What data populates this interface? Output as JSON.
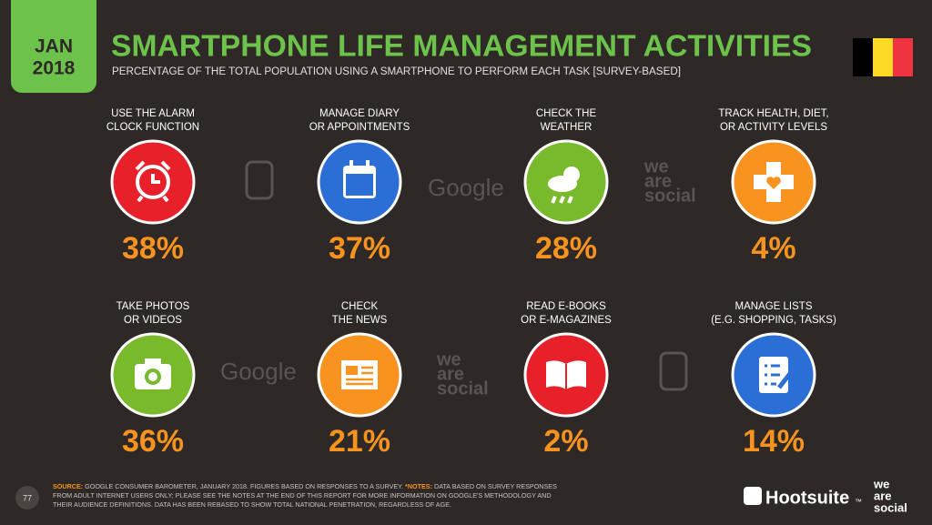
{
  "header": {
    "badge": [
      "JAN",
      "2018"
    ],
    "title": "SMARTPHONE LIFE MANAGEMENT ACTIVITIES",
    "subtitle": "PERCENTAGE OF THE TOTAL POPULATION USING A SMARTPHONE TO PERFORM EACH TASK [SURVEY-BASED]"
  },
  "tiles": [
    {
      "label": [
        "USE THE ALARM",
        "CLOCK FUNCTION"
      ],
      "value": "38%",
      "color": "#e8202a"
    },
    {
      "label": [
        "MANAGE DIARY",
        "OR APPOINTMENTS"
      ],
      "value": "37%",
      "color": "#2b6fd6"
    },
    {
      "label": [
        "CHECK THE",
        "WEATHER"
      ],
      "value": "28%",
      "color": "#79b92c"
    },
    {
      "label": [
        "TRACK HEALTH, DIET,",
        "OR ACTIVITY LEVELS"
      ],
      "value": "4%",
      "color": "#f7931e"
    },
    {
      "label": [
        "TAKE PHOTOS",
        "OR VIDEOS"
      ],
      "value": "36%",
      "color": "#79b92c"
    },
    {
      "label": [
        "CHECK",
        "THE NEWS"
      ],
      "value": "21%",
      "color": "#f7931e"
    },
    {
      "label": [
        "READ E-BOOKS",
        "OR E-MAGAZINES"
      ],
      "value": "2%",
      "color": "#e8202a"
    },
    {
      "label": [
        "MANAGE LISTS",
        "(E.G. SHOPPING, TASKS)"
      ],
      "value": "14%",
      "color": "#2b6fd6"
    }
  ],
  "watermarks": {
    "google": "Google",
    "wearesocial": [
      "we",
      "are",
      "social"
    ]
  },
  "footer": {
    "page": "77",
    "source_head": "SOURCE:",
    "source": " GOOGLE CONSUMER BAROMETER, JANUARY 2018. FIGURES BASED ON RESPONSES TO A SURVEY. ",
    "notes_head": "*NOTES:",
    "notes": " DATA BASED ON SURVEY RESPONSES FROM ADULT INTERNET USERS ONLY; PLEASE SEE THE NOTES AT THE END OF THIS REPORT FOR MORE INFORMATION ON GOOGLE'S METHODOLOGY AND THEIR AUDIENCE DEFINITIONS. DATA HAS BEEN REBASED TO SHOW TOTAL NATIONAL PENETRATION, REGARDLESS OF AGE.",
    "brand": "Hootsuite",
    "brand_tm": "™",
    "partner": [
      "we",
      "are",
      "social"
    ]
  }
}
